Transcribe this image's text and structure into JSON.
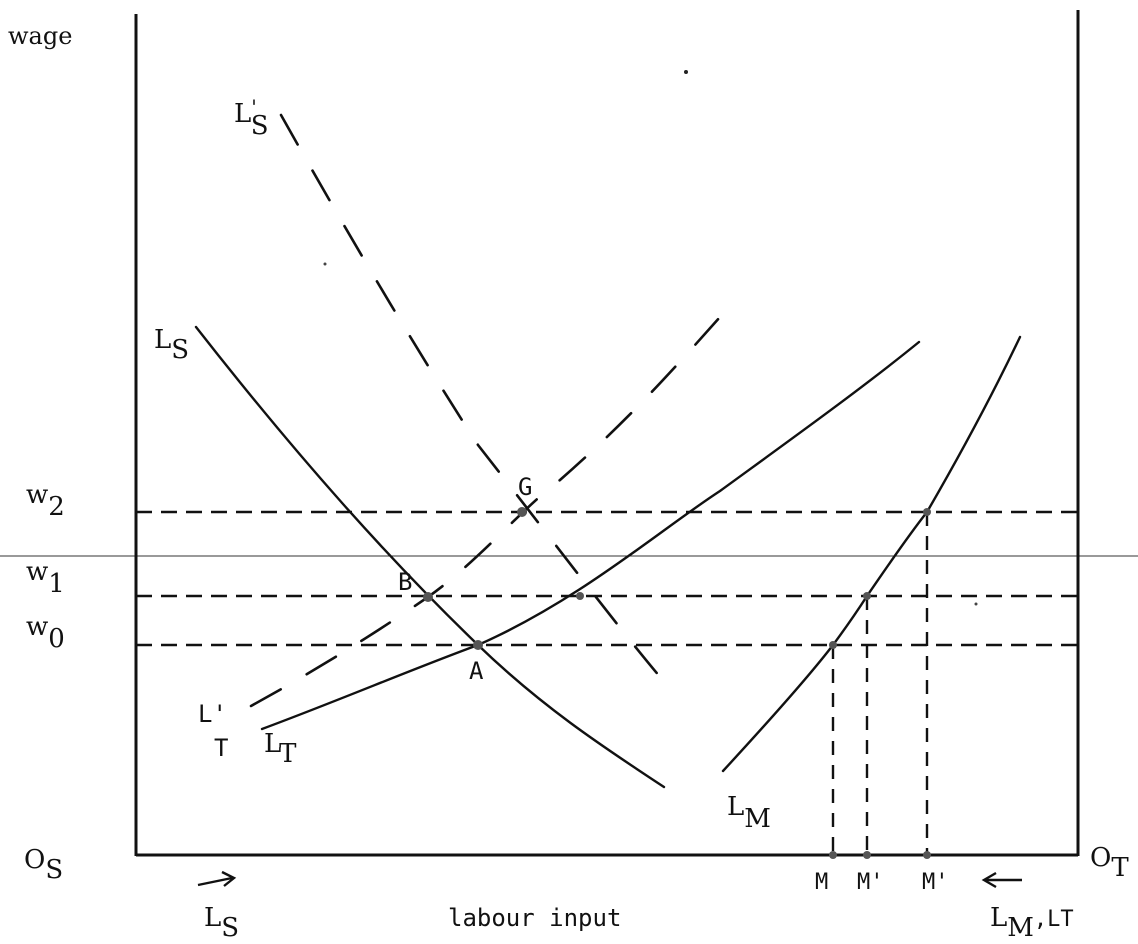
{
  "diagram": {
    "y_axis_label": "wage",
    "x_axis_label": "labour input",
    "origin_left": {
      "base": "O",
      "sub": "S"
    },
    "origin_right": {
      "base": "O",
      "sub": "T"
    },
    "arrow_left_label": {
      "base": "L",
      "sub": "S"
    },
    "arrow_right_label": {
      "base": "L",
      "sub": "M",
      "suffix": ",LT"
    },
    "wage_levels": [
      {
        "base": "w",
        "sub": "2"
      },
      {
        "base": "w",
        "sub": "1"
      },
      {
        "base": "w",
        "sub": "0"
      }
    ],
    "curves": {
      "LS": {
        "base": "L",
        "sub": "S"
      },
      "LS_prime": {
        "base": "L",
        "sub": "S",
        "prime": "'"
      },
      "LT": {
        "base": "L",
        "sub": "T"
      },
      "LT_prime": {
        "base": "L'",
        "sub": "T"
      },
      "LM": {
        "base": "L",
        "sub": "M"
      }
    },
    "points": {
      "G": "G",
      "B": "B",
      "A": "A"
    },
    "x_ticks": [
      "M",
      "M'",
      "M'"
    ]
  }
}
